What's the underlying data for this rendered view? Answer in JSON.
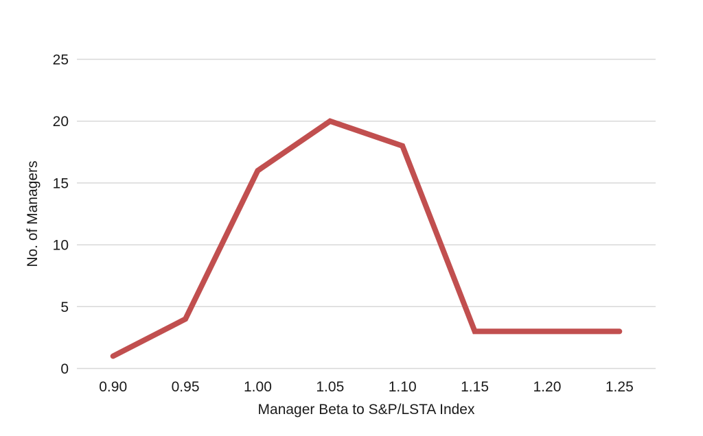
{
  "chart_data": {
    "type": "line",
    "title": "",
    "categories": [
      "0.90",
      "0.95",
      "1.00",
      "1.05",
      "1.10",
      "1.15",
      "1.20",
      "1.25"
    ],
    "values": [
      1,
      4,
      16,
      20,
      18,
      3,
      3,
      3
    ],
    "xlabel": "Manager Beta to S&P/LSTA Index",
    "ylabel": "No. of Managers",
    "y_ticks": [
      0,
      5,
      10,
      15,
      20,
      25
    ],
    "ylim": [
      0,
      25
    ],
    "grid": "horizontal",
    "legend": "none",
    "line_color": "#C14F4F",
    "gridline_color": "#D8D8D8",
    "text_color": "#1A1A1A",
    "background_color": "#FFFFFF"
  }
}
